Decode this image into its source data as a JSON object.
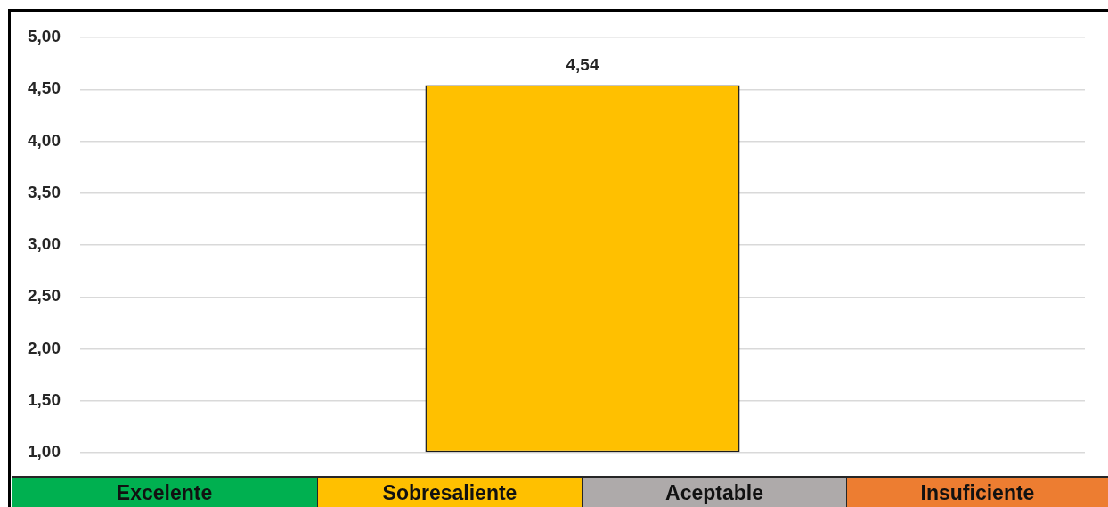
{
  "chart_data": {
    "type": "bar",
    "categories": [
      null
    ],
    "values": [
      4.54
    ],
    "color": "#ffc000",
    "value_labels": [
      "4,54"
    ],
    "ylim": [
      1,
      5
    ],
    "yticks": [
      {
        "value": 1,
        "label": "1,00"
      },
      {
        "value": 1.5,
        "label": "1,50"
      },
      {
        "value": 2,
        "label": "2,00"
      },
      {
        "value": 2.5,
        "label": "2,50"
      },
      {
        "value": 3,
        "label": "3,00"
      },
      {
        "value": 3.5,
        "label": "3,50"
      },
      {
        "value": 4,
        "label": "4,00"
      },
      {
        "value": 4.5,
        "label": "4,50"
      },
      {
        "value": 5,
        "label": "5,00"
      }
    ],
    "grid": "y",
    "annotations": [
      "Excelente",
      "Sobresaliente",
      "Aceptable",
      "Insuficiente"
    ]
  }
}
